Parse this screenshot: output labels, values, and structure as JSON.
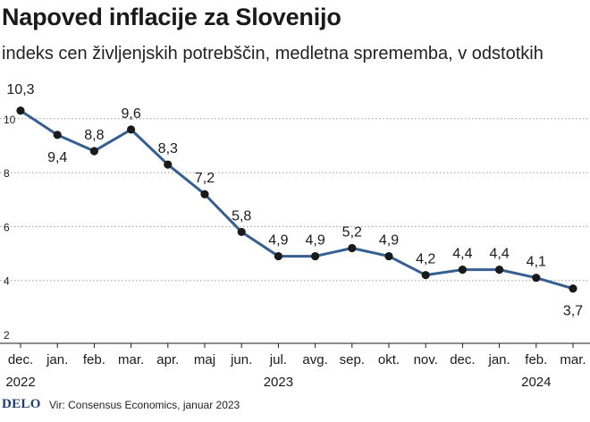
{
  "header": {
    "title": "Napoved inflacije za Slovenijo",
    "subtitle": "indeks cen življenjskih potrebščin, medletna sprememba, v odstotkih"
  },
  "footer": {
    "logo": "DELO",
    "source": "Vir: Consensus Economics, januar 2023"
  },
  "colors": {
    "line": "#355f91",
    "marker": "#1a1a1a",
    "grid": "#9a9a9a"
  },
  "chart_data": {
    "type": "line",
    "title": "Napoved inflacije za Slovenijo",
    "subtitle": "indeks cen življenjskih potrebščin, medletna sprememba, v odstotkih",
    "xlabel": "",
    "ylabel": "",
    "ylim": [
      2,
      11
    ],
    "yticks": [
      2,
      4,
      6,
      8,
      10
    ],
    "grid": true,
    "categories": [
      "dec.",
      "jan.",
      "feb.",
      "mar.",
      "apr.",
      "maj",
      "jun.",
      "jul.",
      "avg.",
      "sep.",
      "okt.",
      "nov.",
      "dec.",
      "jan.",
      "feb.",
      "mar."
    ],
    "year_labels": [
      {
        "index": 0,
        "label": "2022"
      },
      {
        "index": 7,
        "label": "2023"
      },
      {
        "index": 14,
        "label": "2024"
      }
    ],
    "series": [
      {
        "name": "Napoved inflacije",
        "values": [
          10.3,
          9.4,
          8.8,
          9.6,
          8.3,
          7.2,
          5.8,
          4.9,
          4.9,
          5.2,
          4.9,
          4.2,
          4.4,
          4.4,
          4.1,
          3.7
        ],
        "labels": [
          "10,3",
          "9,4",
          "8,8",
          "9,6",
          "8,3",
          "7,2",
          "5,8",
          "4,9",
          "4,9",
          "5,2",
          "4,9",
          "4,2",
          "4,4",
          "4,4",
          "4,1",
          "3,7"
        ]
      }
    ]
  }
}
